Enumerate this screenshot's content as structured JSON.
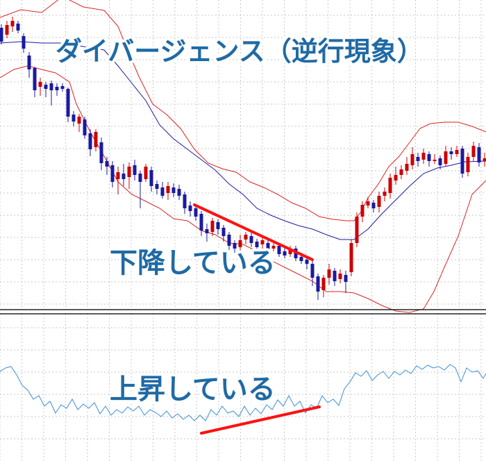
{
  "chart_data": [
    {
      "type": "candlestick",
      "panel": "price",
      "title": "ダイバージェンス（逆行現象）",
      "annotation": "下降している",
      "grid": true,
      "colors": {
        "up_candle": "#cc0000",
        "down_candle": "#1a1aa0",
        "bb_outer": "#dd2222",
        "bb_mid": "#1a1aa0",
        "trend_line": "#ff1111",
        "grid": "#b5b5b5"
      },
      "candles": [
        [
          2,
          40,
          60,
          35,
          64
        ],
        [
          10,
          50,
          36,
          30,
          55
        ],
        [
          18,
          38,
          30,
          24,
          46
        ],
        [
          26,
          34,
          44,
          30,
          48
        ],
        [
          34,
          52,
          70,
          48,
          76
        ],
        [
          42,
          80,
          100,
          75,
          112
        ],
        [
          50,
          98,
          130,
          96,
          140
        ],
        [
          58,
          125,
          118,
          112,
          138
        ],
        [
          66,
          122,
          128,
          118,
          140
        ],
        [
          74,
          120,
          130,
          116,
          152
        ],
        [
          82,
          125,
          130,
          120,
          138
        ],
        [
          90,
          124,
          128,
          120,
          132
        ],
        [
          98,
          128,
          168,
          126,
          176
        ],
        [
          106,
          165,
          175,
          160,
          182
        ],
        [
          114,
          178,
          168,
          164,
          190
        ],
        [
          122,
          172,
          195,
          168,
          200
        ],
        [
          130,
          192,
          215,
          186,
          225
        ],
        [
          138,
          212,
          190,
          186,
          218
        ],
        [
          146,
          205,
          235,
          198,
          245
        ],
        [
          154,
          232,
          240,
          226,
          252
        ],
        [
          162,
          238,
          262,
          232,
          270
        ],
        [
          170,
          258,
          248,
          240,
          280
        ],
        [
          178,
          250,
          258,
          236,
          268
        ],
        [
          186,
          255,
          240,
          234,
          272
        ],
        [
          194,
          238,
          252,
          230,
          260
        ],
        [
          202,
          250,
          262,
          246,
          300
        ],
        [
          210,
          258,
          240,
          236,
          262
        ],
        [
          218,
          245,
          268,
          240,
          276
        ],
        [
          226,
          265,
          272,
          260,
          280
        ],
        [
          234,
          270,
          282,
          262,
          286
        ],
        [
          242,
          278,
          268,
          262,
          288
        ],
        [
          250,
          270,
          278,
          264,
          284
        ],
        [
          258,
          272,
          282,
          266,
          288
        ],
        [
          266,
          280,
          300,
          276,
          308
        ],
        [
          274,
          296,
          304,
          290,
          312
        ],
        [
          282,
          300,
          312,
          296,
          318
        ],
        [
          290,
          308,
          332,
          304,
          340
        ],
        [
          298,
          330,
          336,
          322,
          348
        ],
        [
          306,
          334,
          318,
          314,
          340
        ],
        [
          314,
          320,
          330,
          316,
          338
        ],
        [
          322,
          328,
          340,
          324,
          348
        ],
        [
          330,
          338,
          354,
          334,
          360
        ],
        [
          338,
          350,
          358,
          346,
          364
        ],
        [
          346,
          356,
          346,
          338,
          362
        ],
        [
          354,
          345,
          338,
          334,
          352
        ],
        [
          362,
          340,
          350,
          334,
          356
        ],
        [
          370,
          348,
          356,
          344,
          362
        ],
        [
          378,
          352,
          346,
          340,
          360
        ],
        [
          386,
          350,
          362,
          346,
          366
        ],
        [
          394,
          358,
          354,
          348,
          362
        ],
        [
          402,
          354,
          366,
          350,
          370
        ],
        [
          410,
          362,
          368,
          356,
          372
        ],
        [
          418,
          366,
          358,
          354,
          370
        ],
        [
          426,
          358,
          372,
          354,
          376
        ],
        [
          434,
          370,
          376,
          364,
          380
        ],
        [
          442,
          374,
          380,
          370,
          388
        ],
        [
          450,
          380,
          400,
          376,
          412
        ],
        [
          458,
          398,
          420,
          394,
          432
        ],
        [
          466,
          418,
          400,
          396,
          428
        ],
        [
          474,
          400,
          388,
          380,
          410
        ],
        [
          482,
          390,
          405,
          386,
          412
        ],
        [
          490,
          402,
          394,
          388,
          408
        ],
        [
          498,
          396,
          406,
          390,
          422
        ],
        [
          506,
          392,
          350,
          345,
          398
        ],
        [
          514,
          350,
          312,
          306,
          356
        ],
        [
          522,
          312,
          295,
          290,
          320
        ],
        [
          530,
          296,
          290,
          284,
          300
        ],
        [
          538,
          292,
          300,
          288,
          306
        ],
        [
          546,
          298,
          282,
          276,
          306
        ],
        [
          554,
          282,
          276,
          270,
          290
        ],
        [
          562,
          278,
          256,
          250,
          286
        ],
        [
          570,
          260,
          252,
          240,
          266
        ],
        [
          578,
          252,
          244,
          238,
          258
        ],
        [
          586,
          246,
          236,
          226,
          252
        ],
        [
          594,
          238,
          222,
          212,
          244
        ],
        [
          602,
          226,
          232,
          220,
          240
        ],
        [
          610,
          230,
          220,
          214,
          236
        ],
        [
          618,
          222,
          232,
          218,
          240
        ],
        [
          626,
          232,
          230,
          222,
          236
        ],
        [
          634,
          228,
          238,
          224,
          244
        ],
        [
          642,
          236,
          218,
          210,
          240
        ],
        [
          650,
          218,
          222,
          212,
          230
        ],
        [
          658,
          222,
          216,
          210,
          226
        ],
        [
          666,
          214,
          250,
          210,
          256
        ],
        [
          674,
          248,
          226,
          220,
          254
        ],
        [
          682,
          226,
          210,
          204,
          232
        ],
        [
          690,
          212,
          234,
          206,
          240
        ],
        [
          698,
          232,
          228,
          220,
          240
        ]
      ],
      "bollinger_upper": [
        [
          0,
          25
        ],
        [
          30,
          14
        ],
        [
          60,
          18
        ],
        [
          90,
          -5
        ],
        [
          120,
          10
        ],
        [
          150,
          15
        ],
        [
          170,
          38
        ],
        [
          185,
          75
        ],
        [
          200,
          110
        ],
        [
          220,
          150
        ],
        [
          240,
          165
        ],
        [
          260,
          185
        ],
        [
          280,
          215
        ],
        [
          300,
          235
        ],
        [
          320,
          243
        ],
        [
          340,
          248
        ],
        [
          360,
          262
        ],
        [
          380,
          270
        ],
        [
          400,
          280
        ],
        [
          420,
          292
        ],
        [
          440,
          300
        ],
        [
          460,
          312
        ],
        [
          480,
          316
        ],
        [
          500,
          318
        ],
        [
          510,
          318
        ],
        [
          520,
          305
        ],
        [
          530,
          285
        ],
        [
          545,
          265
        ],
        [
          560,
          240
        ],
        [
          575,
          225
        ],
        [
          590,
          205
        ],
        [
          605,
          185
        ],
        [
          620,
          178
        ],
        [
          640,
          176
        ],
        [
          660,
          176
        ],
        [
          680,
          182
        ],
        [
          700,
          190
        ]
      ],
      "bollinger_mid": [
        [
          0,
          62
        ],
        [
          30,
          60
        ],
        [
          60,
          62
        ],
        [
          90,
          62
        ],
        [
          120,
          67
        ],
        [
          150,
          72
        ],
        [
          170,
          95
        ],
        [
          190,
          120
        ],
        [
          210,
          145
        ],
        [
          230,
          180
        ],
        [
          250,
          200
        ],
        [
          270,
          215
        ],
        [
          290,
          230
        ],
        [
          310,
          245
        ],
        [
          330,
          265
        ],
        [
          350,
          280
        ],
        [
          370,
          300
        ],
        [
          390,
          310
        ],
        [
          410,
          318
        ],
        [
          430,
          325
        ],
        [
          450,
          330
        ],
        [
          470,
          338
        ],
        [
          490,
          345
        ],
        [
          510,
          345
        ],
        [
          530,
          330
        ],
        [
          550,
          308
        ],
        [
          570,
          288
        ],
        [
          590,
          268
        ],
        [
          610,
          250
        ],
        [
          630,
          242
        ],
        [
          650,
          238
        ],
        [
          670,
          233
        ],
        [
          700,
          232
        ]
      ],
      "bollinger_lower": [
        [
          0,
          112
        ],
        [
          20,
          100
        ],
        [
          40,
          95
        ],
        [
          60,
          100
        ],
        [
          80,
          105
        ],
        [
          100,
          118
        ],
        [
          110,
          150
        ],
        [
          130,
          190
        ],
        [
          150,
          225
        ],
        [
          170,
          262
        ],
        [
          190,
          280
        ],
        [
          210,
          290
        ],
        [
          230,
          300
        ],
        [
          250,
          315
        ],
        [
          270,
          318
        ],
        [
          290,
          332
        ],
        [
          310,
          338
        ],
        [
          330,
          350
        ],
        [
          350,
          352
        ],
        [
          370,
          362
        ],
        [
          390,
          375
        ],
        [
          410,
          385
        ],
        [
          430,
          395
        ],
        [
          450,
          405
        ],
        [
          470,
          420
        ],
        [
          490,
          420
        ],
        [
          510,
          422
        ],
        [
          530,
          430
        ],
        [
          550,
          440
        ],
        [
          570,
          448
        ],
        [
          590,
          450
        ],
        [
          610,
          445
        ],
        [
          625,
          420
        ],
        [
          640,
          385
        ],
        [
          660,
          340
        ],
        [
          680,
          280
        ],
        [
          700,
          260
        ]
      ],
      "trend_line": [
        [
          280,
          295
        ],
        [
          450,
          374
        ]
      ]
    },
    {
      "type": "line",
      "panel": "oscillator",
      "annotation": "上昇している",
      "grid": true,
      "colors": {
        "line": "#3b8fd6",
        "trend_line": "#ff1111"
      },
      "series": [
        [
          0,
          535
        ],
        [
          8,
          530
        ],
        [
          16,
          528
        ],
        [
          24,
          540
        ],
        [
          32,
          555
        ],
        [
          40,
          562
        ],
        [
          48,
          575
        ],
        [
          56,
          570
        ],
        [
          64,
          585
        ],
        [
          72,
          578
        ],
        [
          80,
          595
        ],
        [
          88,
          583
        ],
        [
          96,
          588
        ],
        [
          104,
          575
        ],
        [
          112,
          590
        ],
        [
          120,
          582
        ],
        [
          128,
          588
        ],
        [
          136,
          580
        ],
        [
          144,
          596
        ],
        [
          152,
          585
        ],
        [
          160,
          598
        ],
        [
          168,
          590
        ],
        [
          176,
          595
        ],
        [
          184,
          586
        ],
        [
          192,
          592
        ],
        [
          200,
          585
        ],
        [
          208,
          598
        ],
        [
          216,
          590
        ],
        [
          224,
          594
        ],
        [
          232,
          600
        ],
        [
          240,
          592
        ],
        [
          248,
          602
        ],
        [
          256,
          596
        ],
        [
          264,
          604
        ],
        [
          272,
          598
        ],
        [
          280,
          606
        ],
        [
          288,
          598
        ],
        [
          296,
          606
        ],
        [
          304,
          590
        ],
        [
          312,
          598
        ],
        [
          320,
          585
        ],
        [
          328,
          595
        ],
        [
          336,
          592
        ],
        [
          344,
          600
        ],
        [
          352,
          585
        ],
        [
          360,
          598
        ],
        [
          368,
          588
        ],
        [
          376,
          596
        ],
        [
          384,
          583
        ],
        [
          392,
          590
        ],
        [
          400,
          576
        ],
        [
          408,
          585
        ],
        [
          416,
          570
        ],
        [
          424,
          585
        ],
        [
          432,
          578
        ],
        [
          440,
          595
        ],
        [
          448,
          583
        ],
        [
          456,
          588
        ],
        [
          464,
          570
        ],
        [
          472,
          580
        ],
        [
          480,
          575
        ],
        [
          488,
          584
        ],
        [
          496,
          560
        ],
        [
          504,
          550
        ],
        [
          512,
          537
        ],
        [
          520,
          542
        ],
        [
          528,
          534
        ],
        [
          536,
          548
        ],
        [
          544,
          540
        ],
        [
          552,
          535
        ],
        [
          560,
          545
        ],
        [
          568,
          535
        ],
        [
          576,
          540
        ],
        [
          584,
          533
        ],
        [
          592,
          538
        ],
        [
          600,
          527
        ],
        [
          608,
          532
        ],
        [
          616,
          526
        ],
        [
          624,
          530
        ],
        [
          632,
          528
        ],
        [
          640,
          533
        ],
        [
          648,
          525
        ],
        [
          656,
          530
        ],
        [
          664,
          550
        ],
        [
          672,
          530
        ],
        [
          680,
          536
        ],
        [
          688,
          534
        ],
        [
          696,
          545
        ],
        [
          700,
          538
        ]
      ],
      "trend_line": [
        [
          290,
          624
        ],
        [
          460,
          586
        ]
      ]
    }
  ]
}
